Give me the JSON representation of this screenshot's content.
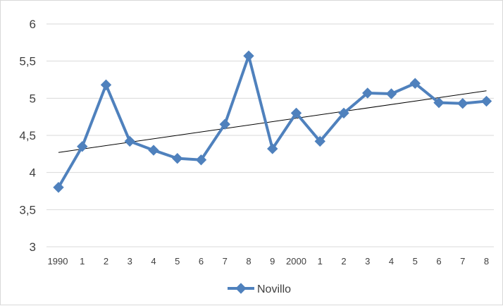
{
  "chart_data": {
    "type": "line",
    "categories": [
      "1990",
      "1",
      "2",
      "3",
      "4",
      "5",
      "6",
      "7",
      "8",
      "9",
      "2000",
      "1",
      "2",
      "3",
      "4",
      "5",
      "6",
      "7",
      "8"
    ],
    "series": [
      {
        "name": "Novillo",
        "color": "#4f81bd",
        "marker": "diamond",
        "values": [
          3.8,
          4.35,
          5.18,
          4.42,
          4.3,
          4.19,
          4.17,
          4.65,
          5.57,
          4.32,
          4.8,
          4.42,
          4.8,
          5.07,
          5.06,
          5.2,
          4.94,
          4.93,
          4.96
        ]
      }
    ],
    "trendline": {
      "type": "linear",
      "color": "#000000",
      "start": 4.27,
      "end": 5.1
    },
    "yticks": [
      "3",
      "3,5",
      "4",
      "4,5",
      "5",
      "5,5",
      "6"
    ],
    "ylim": [
      3,
      6
    ],
    "grid": true,
    "legend_position": "bottom"
  }
}
